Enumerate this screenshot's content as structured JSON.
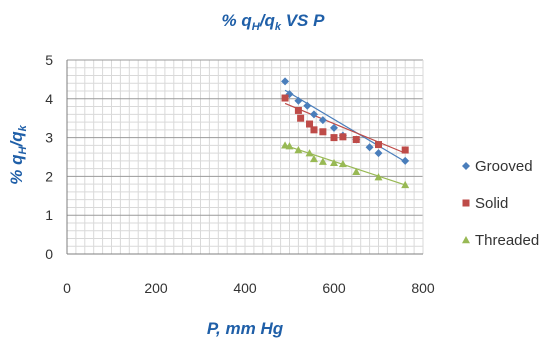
{
  "chart_data": {
    "type": "scatter",
    "title": "% q_H/q_k VS P",
    "xlabel": "P, mm Hg",
    "ylabel": "% q_H/q_k",
    "xlim": [
      0,
      800
    ],
    "ylim": [
      0,
      5
    ],
    "xticks": [
      0,
      200,
      400,
      600,
      800
    ],
    "yticks": [
      0,
      1,
      2,
      3,
      4,
      5
    ],
    "grid": true,
    "legend_position": "right",
    "trendlines": true,
    "series": [
      {
        "name": "Grooved",
        "marker": "diamond",
        "color": "#4a7ebb",
        "x": [
          490,
          500,
          520,
          540,
          555,
          575,
          600,
          620,
          650,
          680,
          700,
          760
        ],
        "y": [
          4.45,
          4.12,
          3.95,
          3.82,
          3.6,
          3.45,
          3.25,
          3.05,
          2.95,
          2.75,
          2.6,
          2.4
        ],
        "trend": [
          [
            490,
            4.22
          ],
          [
            760,
            2.38
          ]
        ]
      },
      {
        "name": "Solid",
        "marker": "square",
        "color": "#be4b48",
        "x": [
          490,
          520,
          525,
          545,
          555,
          575,
          600,
          620,
          650,
          700,
          760
        ],
        "y": [
          4.02,
          3.7,
          3.5,
          3.35,
          3.2,
          3.15,
          3.0,
          3.02,
          2.95,
          2.82,
          2.68
        ],
        "trend": [
          [
            490,
            3.88
          ],
          [
            760,
            2.6
          ]
        ]
      },
      {
        "name": "Threaded",
        "marker": "triangle",
        "color": "#98b954",
        "x": [
          490,
          500,
          520,
          545,
          555,
          575,
          600,
          620,
          650,
          700,
          760
        ],
        "y": [
          2.8,
          2.78,
          2.68,
          2.6,
          2.45,
          2.38,
          2.35,
          2.32,
          2.12,
          1.98,
          1.78
        ],
        "trend": [
          [
            490,
            2.8
          ],
          [
            760,
            1.78
          ]
        ]
      }
    ]
  },
  "title_parts": {
    "prefix": "% q",
    "sub1": "H",
    "mid": "/q",
    "sub2": "k",
    "suffix": " VS P"
  },
  "ylabel_parts": {
    "prefix": "% q",
    "sub1": "H",
    "mid": "/q",
    "sub2": "k"
  }
}
